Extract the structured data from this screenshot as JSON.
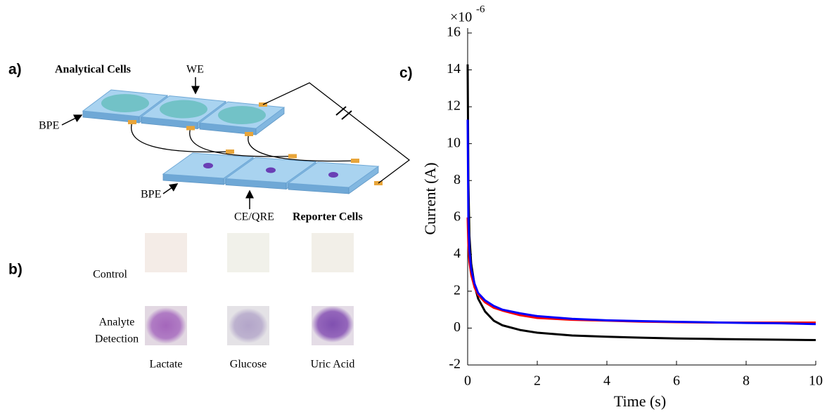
{
  "figure": {
    "panel_a": {
      "label": "a)",
      "analytical_cells": "Analytical Cells",
      "we": "WE",
      "bpe_top": "BPE",
      "bpe_bottom": "BPE",
      "ce_qre": "CE/QRE",
      "reporter_cells": "Reporter Cells"
    },
    "panel_b": {
      "label": "b)",
      "row_labels": [
        [
          "Control"
        ],
        [
          "Analyte",
          "Detection"
        ]
      ],
      "columns": [
        "Lactate",
        "Glucose",
        "Uric Acid"
      ]
    },
    "panel_c": {
      "label": "c)"
    }
  },
  "chart_data": {
    "type": "line",
    "xlabel": "Time (s)",
    "ylabel": "Current (A)",
    "y_multiplier": {
      "base": "×10",
      "exponent": "-6"
    },
    "x": [
      0,
      0.02,
      0.05,
      0.1,
      0.2,
      0.3,
      0.5,
      0.75,
      1,
      1.5,
      2,
      3,
      4,
      5,
      6,
      7,
      8,
      9,
      10
    ],
    "series": [
      {
        "color": "#000000",
        "values": [
          14.3,
          8,
          5,
          3.5,
          2.3,
          1.6,
          0.9,
          0.4,
          0.15,
          -0.1,
          -0.25,
          -0.4,
          -0.47,
          -0.52,
          -0.56,
          -0.59,
          -0.61,
          -0.63,
          -0.65
        ]
      },
      {
        "color": "#ff0000",
        "values": [
          6,
          4.5,
          3.6,
          2.9,
          2.2,
          1.8,
          1.4,
          1.1,
          0.95,
          0.7,
          0.55,
          0.45,
          0.4,
          0.35,
          0.32,
          0.3,
          0.3,
          0.3,
          0.3
        ]
      },
      {
        "color": "#0000ff",
        "values": [
          11.3,
          6,
          4.2,
          3.2,
          2.4,
          1.9,
          1.5,
          1.2,
          1.0,
          0.8,
          0.65,
          0.5,
          0.42,
          0.38,
          0.34,
          0.31,
          0.28,
          0.26,
          0.22
        ]
      }
    ],
    "xlim": [
      0,
      10
    ],
    "ylim": [
      -2,
      16
    ],
    "xticks": [
      0,
      2,
      4,
      6,
      8,
      10
    ],
    "yticks": [
      -2,
      0,
      2,
      4,
      6,
      8,
      10,
      12,
      14,
      16
    ]
  }
}
